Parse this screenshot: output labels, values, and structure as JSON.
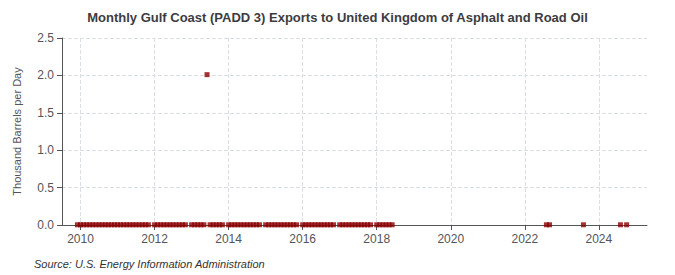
{
  "chart_data": {
    "type": "scatter",
    "title": "Monthly Gulf Coast (PADD 3) Exports to United Kingdom of Asphalt and Road Oil",
    "ylabel": "Thousand Barrels per Day",
    "source": "Source: U.S. Energy Information Administration",
    "color": "#8b0000",
    "marker": "square",
    "grid": true,
    "xlim": [
      2009.5,
      2025.3
    ],
    "xticks": [
      2010,
      2012,
      2014,
      2016,
      2018,
      2020,
      2022,
      2024
    ],
    "ylim": [
      0,
      2.5
    ],
    "yticks": [
      {
        "value": 0.0,
        "label": "0.0"
      },
      0.5,
      {
        "value": 1.0,
        "label": "1.0"
      },
      1.5,
      {
        "value": 2.0,
        "label": "2.0"
      },
      2.5
    ],
    "x": [
      2009.917,
      2010.0,
      2010.083,
      2010.167,
      2010.25,
      2010.333,
      2010.417,
      2010.5,
      2010.583,
      2010.667,
      2010.75,
      2010.833,
      2010.917,
      2011.0,
      2011.083,
      2011.167,
      2011.25,
      2011.333,
      2011.417,
      2011.5,
      2011.583,
      2011.667,
      2011.75,
      2011.833,
      2012.0,
      2012.083,
      2012.167,
      2012.25,
      2012.333,
      2012.417,
      2012.5,
      2012.583,
      2012.667,
      2012.75,
      2012.833,
      2013.0,
      2013.083,
      2013.167,
      2013.25,
      2013.333,
      2013.417,
      2013.5,
      2013.583,
      2013.667,
      2013.75,
      2013.833,
      2014.0,
      2014.083,
      2014.167,
      2014.25,
      2014.333,
      2014.417,
      2014.5,
      2014.583,
      2014.667,
      2014.75,
      2014.833,
      2015.0,
      2015.083,
      2015.167,
      2015.25,
      2015.333,
      2015.417,
      2015.5,
      2015.583,
      2015.667,
      2015.75,
      2015.833,
      2016.0,
      2016.083,
      2016.167,
      2016.25,
      2016.333,
      2016.417,
      2016.5,
      2016.583,
      2016.667,
      2016.75,
      2016.833,
      2017.0,
      2017.083,
      2017.167,
      2017.25,
      2017.333,
      2017.417,
      2017.5,
      2017.583,
      2017.667,
      2017.75,
      2017.833,
      2018.0,
      2018.083,
      2018.167,
      2018.25,
      2018.333,
      2018.417,
      2022.583,
      2022.667,
      2023.583,
      2024.583,
      2024.75
    ],
    "values": [
      0.003,
      0.003,
      0.003,
      0.003,
      0.003,
      0.003,
      0.003,
      0.003,
      0.003,
      0.003,
      0.003,
      0.003,
      0.003,
      0.003,
      0.003,
      0.003,
      0.003,
      0.003,
      0.003,
      0.003,
      0.003,
      0.003,
      0.003,
      0.003,
      0.003,
      0.003,
      0.003,
      0.003,
      0.003,
      0.003,
      0.003,
      0.003,
      0.003,
      0.003,
      0.003,
      0.003,
      0.003,
      0.003,
      0.003,
      0.003,
      2.01,
      0.003,
      0.003,
      0.003,
      0.003,
      0.003,
      0.003,
      0.003,
      0.003,
      0.003,
      0.003,
      0.003,
      0.003,
      0.003,
      0.003,
      0.003,
      0.003,
      0.003,
      0.003,
      0.003,
      0.003,
      0.003,
      0.003,
      0.003,
      0.003,
      0.003,
      0.003,
      0.003,
      0.003,
      0.003,
      0.003,
      0.003,
      0.003,
      0.003,
      0.003,
      0.003,
      0.003,
      0.003,
      0.003,
      0.003,
      0.003,
      0.003,
      0.003,
      0.003,
      0.003,
      0.003,
      0.003,
      0.003,
      0.003,
      0.003,
      0.003,
      0.003,
      0.003,
      0.003,
      0.003,
      0.003,
      0.003,
      0.003,
      0.003,
      0.003,
      0.003
    ]
  }
}
